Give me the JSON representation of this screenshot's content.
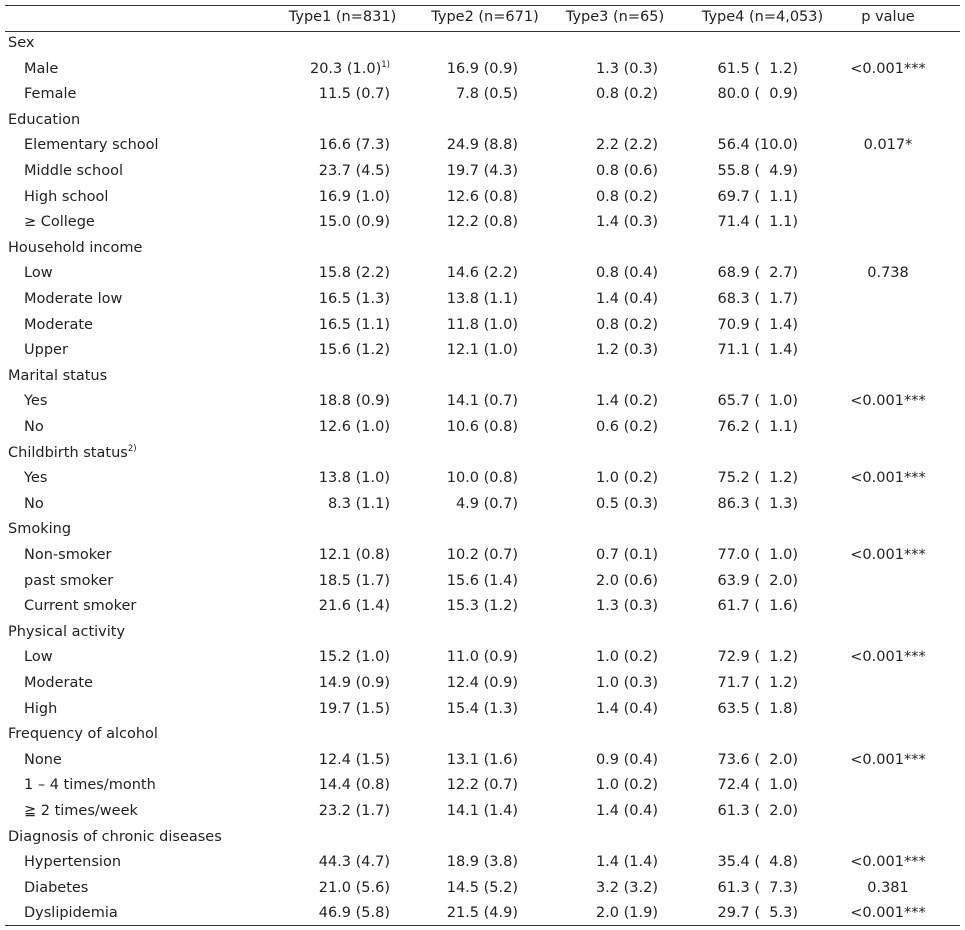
{
  "columns": [
    "Type1 (n=831)",
    "Type2 (n=671)",
    "Type3 (n=65)",
    "Type4 (n=4,053)",
    "p value"
  ],
  "rows": [
    {
      "label": "Sex",
      "indent": false
    },
    {
      "label": "Male",
      "indent": true,
      "v": [
        "20.3 (1.0)",
        "16.9 (0.9)",
        "1.3 (0.3)",
        "61.5 (  1.2)",
        "<0.001***"
      ],
      "sup1": "1)"
    },
    {
      "label": "Female",
      "indent": true,
      "v": [
        "11.5 (0.7)",
        "7.8 (0.5)",
        "0.8 (0.2)",
        "80.0 (  0.9)",
        ""
      ]
    },
    {
      "label": "Education",
      "indent": false
    },
    {
      "label": "Elementary school",
      "indent": true,
      "v": [
        "16.6 (7.3)",
        "24.9 (8.8)",
        "2.2 (2.2)",
        "56.4 (10.0)",
        "0.017*"
      ]
    },
    {
      "label": "Middle school",
      "indent": true,
      "v": [
        "23.7 (4.5)",
        "19.7 (4.3)",
        "0.8 (0.6)",
        "55.8 (  4.9)",
        ""
      ]
    },
    {
      "label": "High school",
      "indent": true,
      "v": [
        "16.9 (1.0)",
        "12.6 (0.8)",
        "0.8 (0.2)",
        "69.7 (  1.1)",
        ""
      ]
    },
    {
      "label": "≥ College",
      "indent": true,
      "v": [
        "15.0 (0.9)",
        "12.2 (0.8)",
        "1.4 (0.3)",
        "71.4 (  1.1)",
        ""
      ]
    },
    {
      "label": "Household income",
      "indent": false
    },
    {
      "label": "Low",
      "indent": true,
      "v": [
        "15.8 (2.2)",
        "14.6 (2.2)",
        "0.8 (0.4)",
        "68.9 (  2.7)",
        "0.738"
      ]
    },
    {
      "label": "Moderate low",
      "indent": true,
      "v": [
        "16.5 (1.3)",
        "13.8 (1.1)",
        "1.4 (0.4)",
        "68.3 (  1.7)",
        ""
      ]
    },
    {
      "label": "Moderate",
      "indent": true,
      "v": [
        "16.5 (1.1)",
        "11.8 (1.0)",
        "0.8 (0.2)",
        "70.9 (  1.4)",
        ""
      ]
    },
    {
      "label": "Upper",
      "indent": true,
      "v": [
        "15.6 (1.2)",
        "12.1 (1.0)",
        "1.2 (0.3)",
        "71.1 (  1.4)",
        ""
      ]
    },
    {
      "label": "Marital status",
      "indent": false
    },
    {
      "label": "Yes",
      "indent": true,
      "v": [
        "18.8 (0.9)",
        "14.1 (0.7)",
        "1.4 (0.2)",
        "65.7 (  1.0)",
        "<0.001***"
      ]
    },
    {
      "label": "No",
      "indent": true,
      "v": [
        "12.6 (1.0)",
        "10.6 (0.8)",
        "0.6 (0.2)",
        "76.2 (  1.1)",
        ""
      ]
    },
    {
      "label": "Childbirth status",
      "indent": false,
      "sup": "2)"
    },
    {
      "label": "Yes",
      "indent": true,
      "v": [
        "13.8 (1.0)",
        "10.0 (0.8)",
        "1.0 (0.2)",
        "75.2 (  1.2)",
        "<0.001***"
      ]
    },
    {
      "label": "No",
      "indent": true,
      "v": [
        "8.3 (1.1)",
        "4.9 (0.7)",
        "0.5 (0.3)",
        "86.3 (  1.3)",
        ""
      ]
    },
    {
      "label": "Smoking",
      "indent": false
    },
    {
      "label": "Non-smoker",
      "indent": true,
      "v": [
        "12.1 (0.8)",
        "10.2 (0.7)",
        "0.7 (0.1)",
        "77.0 (  1.0)",
        "<0.001***"
      ]
    },
    {
      "label": "past smoker",
      "indent": true,
      "v": [
        "18.5 (1.7)",
        "15.6 (1.4)",
        "2.0 (0.6)",
        "63.9 (  2.0)",
        ""
      ]
    },
    {
      "label": "Current smoker",
      "indent": true,
      "v": [
        "21.6 (1.4)",
        "15.3 (1.2)",
        "1.3 (0.3)",
        "61.7 (  1.6)",
        ""
      ]
    },
    {
      "label": "Physical activity",
      "indent": false
    },
    {
      "label": "Low",
      "indent": true,
      "v": [
        "15.2 (1.0)",
        "11.0 (0.9)",
        "1.0 (0.2)",
        "72.9 (  1.2)",
        "<0.001***"
      ]
    },
    {
      "label": "Moderate",
      "indent": true,
      "v": [
        "14.9 (0.9)",
        "12.4 (0.9)",
        "1.0 (0.3)",
        "71.7 (  1.2)",
        ""
      ]
    },
    {
      "label": "High",
      "indent": true,
      "v": [
        "19.7 (1.5)",
        "15.4 (1.3)",
        "1.4 (0.4)",
        "63.5 (  1.8)",
        ""
      ]
    },
    {
      "label": "Frequency of alcohol",
      "indent": false
    },
    {
      "label": "None",
      "indent": true,
      "v": [
        "12.4 (1.5)",
        "13.1 (1.6)",
        "0.9 (0.4)",
        "73.6 (  2.0)",
        "<0.001***"
      ]
    },
    {
      "label": "1 – 4 times/month",
      "indent": true,
      "v": [
        "14.4 (0.8)",
        "12.2 (0.7)",
        "1.0 (0.2)",
        "72.4 (  1.0)",
        ""
      ]
    },
    {
      "label": "≧ 2 times/week",
      "indent": true,
      "v": [
        "23.2 (1.7)",
        "14.1 (1.4)",
        "1.4 (0.4)",
        "61.3 (  2.0)",
        ""
      ]
    },
    {
      "label": "Diagnosis of chronic diseases",
      "indent": false
    },
    {
      "label": "Hypertension",
      "indent": true,
      "v": [
        "44.3 (4.7)",
        "18.9 (3.8)",
        "1.4 (1.4)",
        "35.4 (  4.8)",
        "<0.001***"
      ]
    },
    {
      "label": "Diabetes",
      "indent": true,
      "v": [
        "21.0 (5.6)",
        "14.5 (5.2)",
        "3.2 (3.2)",
        "61.3 (  7.3)",
        "0.381"
      ]
    },
    {
      "label": "Dyslipidemia",
      "indent": true,
      "v": [
        "46.9 (5.8)",
        "21.5 (4.9)",
        "2.0 (1.9)",
        "29.7 (  5.3)",
        "<0.001***"
      ]
    }
  ]
}
